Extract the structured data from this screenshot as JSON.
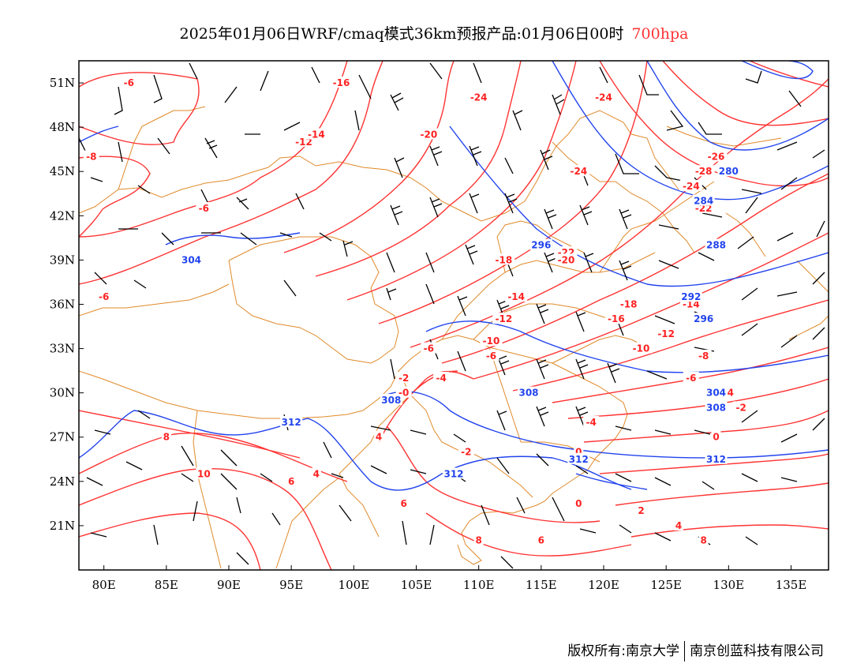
{
  "header": {
    "title": "2025年01月06日WRF/cmaq模式36km预报产品:01月06日00时",
    "level": "700hpa"
  },
  "footer": {
    "copyright": "版权所有:南京大学",
    "company": "南京创蓝科技有限公司"
  },
  "axes": {
    "lat_labels": [
      "51N",
      "48N",
      "45N",
      "42N",
      "39N",
      "36N",
      "33N",
      "30N",
      "27N",
      "24N",
      "21N"
    ],
    "lat_values": [
      51,
      48,
      45,
      42,
      39,
      36,
      33,
      30,
      27,
      24,
      21
    ],
    "lon_labels": [
      "80E",
      "85E",
      "90E",
      "95E",
      "100E",
      "105E",
      "110E",
      "115E",
      "120E",
      "125E",
      "130E",
      "135E"
    ],
    "lon_values": [
      80,
      85,
      90,
      95,
      100,
      105,
      110,
      115,
      120,
      125,
      130,
      135
    ],
    "lon_range": [
      78,
      138
    ],
    "lat_range": [
      18,
      52.5
    ]
  },
  "colors": {
    "temperature": "#ff3333",
    "height": "#2244ee",
    "border": "#e08a2a",
    "barb": "#000000"
  },
  "temperature_labels": [
    {
      "text": "-6",
      "lon": 82,
      "lat": 51
    },
    {
      "text": "-8",
      "lon": 79,
      "lat": 46
    },
    {
      "text": "-16",
      "lon": 99,
      "lat": 51
    },
    {
      "text": "-12",
      "lon": 96,
      "lat": 47
    },
    {
      "text": "-14",
      "lon": 97,
      "lat": 47.5
    },
    {
      "text": "-24",
      "lon": 110,
      "lat": 50
    },
    {
      "text": "-20",
      "lon": 106,
      "lat": 47.5
    },
    {
      "text": "-24",
      "lon": 120,
      "lat": 50
    },
    {
      "text": "-24",
      "lon": 118,
      "lat": 45
    },
    {
      "text": "-6",
      "lon": 88,
      "lat": 42.5
    },
    {
      "text": "-26",
      "lon": 129,
      "lat": 46
    },
    {
      "text": "-28",
      "lon": 128,
      "lat": 45
    },
    {
      "text": "-24",
      "lon": 127,
      "lat": 44
    },
    {
      "text": "-22",
      "lon": 128,
      "lat": 42.5
    },
    {
      "text": "-20",
      "lon": 129,
      "lat": 40
    },
    {
      "text": "-22",
      "lon": 117,
      "lat": 39.5
    },
    {
      "text": "-20",
      "lon": 117,
      "lat": 39
    },
    {
      "text": "-18",
      "lon": 112,
      "lat": 39
    },
    {
      "text": "-6",
      "lon": 80,
      "lat": 36.5
    },
    {
      "text": "-14",
      "lon": 113,
      "lat": 36.5
    },
    {
      "text": "-12",
      "lon": 112,
      "lat": 35
    },
    {
      "text": "-10",
      "lon": 111,
      "lat": 33.5
    },
    {
      "text": "-18",
      "lon": 122,
      "lat": 36
    },
    {
      "text": "-16",
      "lon": 121,
      "lat": 35
    },
    {
      "text": "-14",
      "lon": 127,
      "lat": 36
    },
    {
      "text": "-12",
      "lon": 125,
      "lat": 34
    },
    {
      "text": "-10",
      "lon": 123,
      "lat": 33
    },
    {
      "text": "-8",
      "lon": 128,
      "lat": 32.5
    },
    {
      "text": "-6",
      "lon": 106,
      "lat": 33
    },
    {
      "text": "-6",
      "lon": 111,
      "lat": 32.5
    },
    {
      "text": "-6",
      "lon": 127,
      "lat": 31
    },
    {
      "text": "-4",
      "lon": 130,
      "lat": 30
    },
    {
      "text": "-4",
      "lon": 107,
      "lat": 31
    },
    {
      "text": "-2",
      "lon": 104,
      "lat": 31
    },
    {
      "text": "-0",
      "lon": 104,
      "lat": 30
    },
    {
      "text": "-2",
      "lon": 131,
      "lat": 29
    },
    {
      "text": "-4",
      "lon": 119,
      "lat": 28
    },
    {
      "text": "0",
      "lon": 129,
      "lat": 27
    },
    {
      "text": "4",
      "lon": 102,
      "lat": 27
    },
    {
      "text": "-2",
      "lon": 109,
      "lat": 26
    },
    {
      "text": "0",
      "lon": 118,
      "lat": 26
    },
    {
      "text": "8",
      "lon": 85,
      "lat": 27
    },
    {
      "text": "10",
      "lon": 88,
      "lat": 24.5
    },
    {
      "text": "4",
      "lon": 97,
      "lat": 24.5
    },
    {
      "text": "6",
      "lon": 95,
      "lat": 24
    },
    {
      "text": "6",
      "lon": 104,
      "lat": 22.5
    },
    {
      "text": "0",
      "lon": 118,
      "lat": 22.5
    },
    {
      "text": "2",
      "lon": 123,
      "lat": 22
    },
    {
      "text": "4",
      "lon": 126,
      "lat": 21
    },
    {
      "text": "6",
      "lon": 115,
      "lat": 20
    },
    {
      "text": "8",
      "lon": 128,
      "lat": 20
    },
    {
      "text": "8",
      "lon": 110,
      "lat": 20
    }
  ],
  "height_labels": [
    {
      "text": "280",
      "lon": 130,
      "lat": 45
    },
    {
      "text": "284",
      "lon": 128,
      "lat": 43
    },
    {
      "text": "288",
      "lon": 129,
      "lat": 40
    },
    {
      "text": "296",
      "lon": 115,
      "lat": 40
    },
    {
      "text": "304",
      "lon": 87,
      "lat": 39
    },
    {
      "text": "292",
      "lon": 127,
      "lat": 36.5
    },
    {
      "text": "296",
      "lon": 128,
      "lat": 35
    },
    {
      "text": "308",
      "lon": 114,
      "lat": 30
    },
    {
      "text": "308",
      "lon": 103,
      "lat": 29.5
    },
    {
      "text": "304",
      "lon": 129,
      "lat": 30
    },
    {
      "text": "308",
      "lon": 129,
      "lat": 29
    },
    {
      "text": "312",
      "lon": 95,
      "lat": 28
    },
    {
      "text": "312",
      "lon": 108,
      "lat": 24.5
    },
    {
      "text": "312",
      "lon": 118,
      "lat": 25.5
    },
    {
      "text": "312",
      "lon": 129,
      "lat": 25.5
    }
  ]
}
